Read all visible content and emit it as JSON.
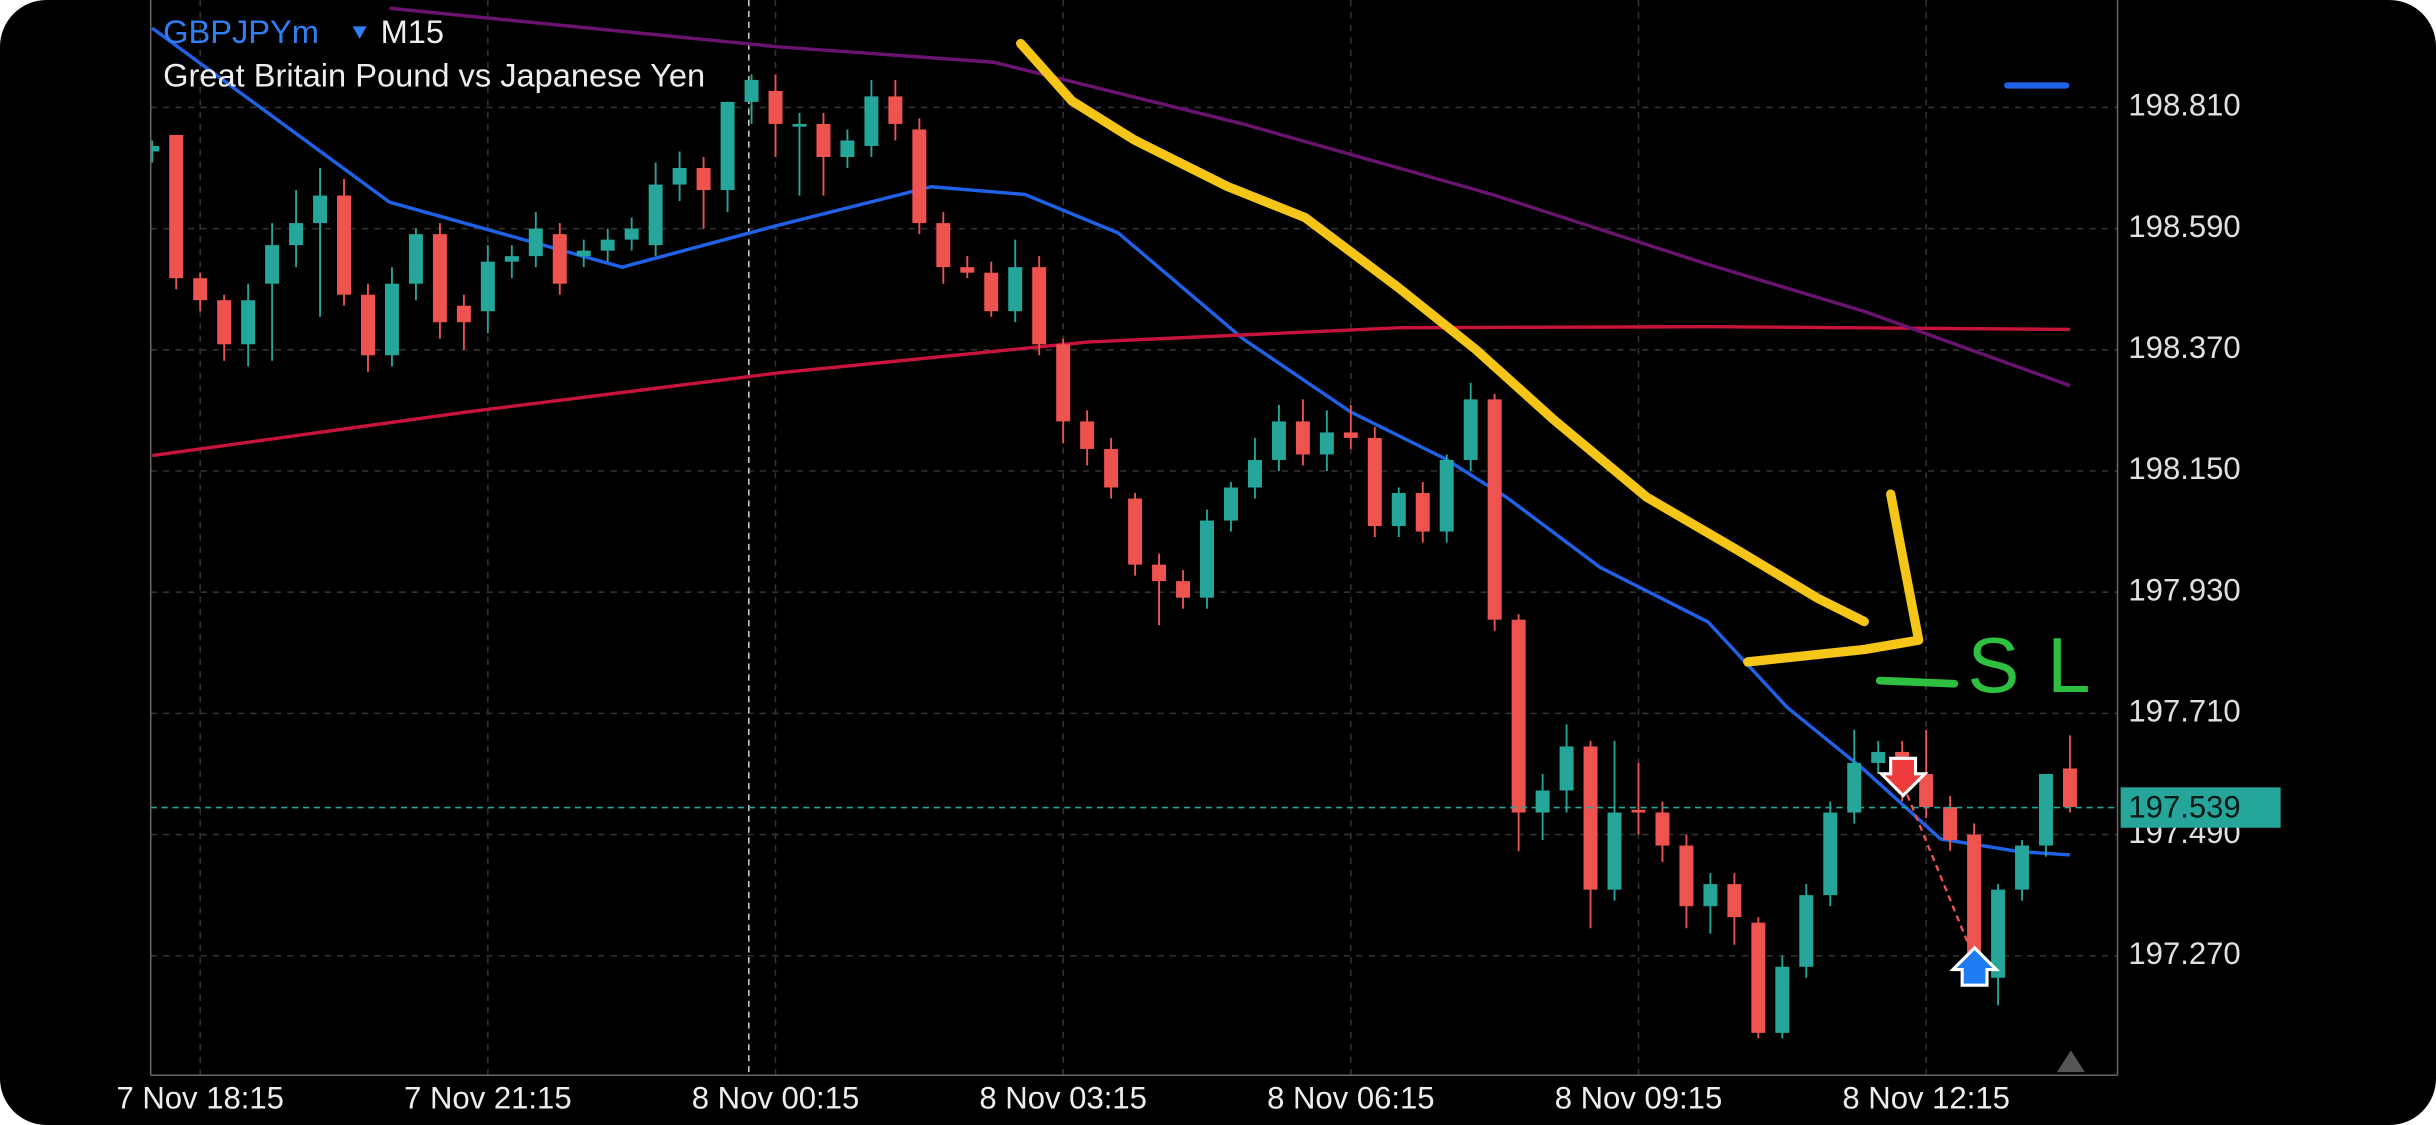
{
  "chart_data": {
    "type": "candlestick",
    "title": "GBPJPYm",
    "timeframe": "M15",
    "subtitle": "Great Britain Pound vs Japanese Yen",
    "up_color": "#26a69a",
    "down_color": "#ef5350",
    "grid": true,
    "ylim": [
      197.053,
      199.005
    ],
    "yticks": [
      {
        "value": 198.81,
        "label": "198.810"
      },
      {
        "value": 198.59,
        "label": "198.590"
      },
      {
        "value": 198.37,
        "label": "198.370"
      },
      {
        "value": 198.15,
        "label": "198.150"
      },
      {
        "value": 197.93,
        "label": "197.930"
      },
      {
        "value": 197.71,
        "label": "197.710"
      },
      {
        "value": 197.49,
        "label": "197.490"
      },
      {
        "value": 197.27,
        "label": "197.270"
      }
    ],
    "current_price": 197.539,
    "current_price_color": "#26a69a",
    "annotation": "SL",
    "categories": [
      null,
      null,
      "7 Nov 18:15",
      null,
      null,
      null,
      null,
      null,
      null,
      null,
      null,
      null,
      null,
      null,
      "7 Nov 21:15",
      null,
      null,
      null,
      null,
      null,
      null,
      null,
      null,
      null,
      null,
      null,
      "8 Nov 00:15",
      null,
      null,
      null,
      null,
      null,
      null,
      null,
      null,
      null,
      null,
      null,
      "8 Nov 03:15",
      null,
      null,
      null,
      null,
      null,
      null,
      null,
      null,
      null,
      null,
      null,
      "8 Nov 06:15",
      null,
      null,
      null,
      null,
      null,
      null,
      null,
      null,
      null,
      null,
      null,
      "8 Nov 09:15",
      null,
      null,
      null,
      null,
      null,
      null,
      null,
      null,
      null,
      null,
      null,
      "8 Nov 12:15",
      null,
      null,
      null,
      null,
      null,
      null
    ],
    "ohlc": [
      [
        198.73,
        198.75,
        198.71,
        198.74
      ],
      [
        198.76,
        198.76,
        198.48,
        198.5
      ],
      [
        198.5,
        198.51,
        198.44,
        198.46
      ],
      [
        198.46,
        198.47,
        198.35,
        198.38
      ],
      [
        198.38,
        198.49,
        198.34,
        198.46
      ],
      [
        198.49,
        198.6,
        198.35,
        198.56
      ],
      [
        198.56,
        198.66,
        198.52,
        198.6
      ],
      [
        198.6,
        198.7,
        198.43,
        198.65
      ],
      [
        198.65,
        198.68,
        198.45,
        198.47
      ],
      [
        198.47,
        198.49,
        198.33,
        198.36
      ],
      [
        198.36,
        198.52,
        198.34,
        198.49
      ],
      [
        198.49,
        198.59,
        198.46,
        198.58
      ],
      [
        198.58,
        198.6,
        198.39,
        198.42
      ],
      [
        198.45,
        198.47,
        198.37,
        198.42
      ],
      [
        198.44,
        198.56,
        198.4,
        198.53
      ],
      [
        198.53,
        198.56,
        198.5,
        198.54
      ],
      [
        198.54,
        198.62,
        198.52,
        198.59
      ],
      [
        198.58,
        198.6,
        198.47,
        198.49
      ],
      [
        198.54,
        198.57,
        198.52,
        198.55
      ],
      [
        198.55,
        198.59,
        198.53,
        198.57
      ],
      [
        198.57,
        198.61,
        198.55,
        198.59
      ],
      [
        198.56,
        198.71,
        198.54,
        198.67
      ],
      [
        198.67,
        198.73,
        198.64,
        198.7
      ],
      [
        198.7,
        198.72,
        198.59,
        198.66
      ],
      [
        198.66,
        198.82,
        198.62,
        198.82
      ],
      [
        198.82,
        198.87,
        198.78,
        198.86
      ],
      [
        198.84,
        198.87,
        198.72,
        198.78
      ],
      [
        198.775,
        198.8,
        198.65,
        198.78
      ],
      [
        198.78,
        198.8,
        198.65,
        198.72
      ],
      [
        198.72,
        198.77,
        198.7,
        198.75
      ],
      [
        198.74,
        198.86,
        198.72,
        198.83
      ],
      [
        198.83,
        198.86,
        198.75,
        198.78
      ],
      [
        198.77,
        198.79,
        198.58,
        198.6
      ],
      [
        198.6,
        198.62,
        198.49,
        198.52
      ],
      [
        198.52,
        198.54,
        198.5,
        198.51
      ],
      [
        198.51,
        198.53,
        198.43,
        198.44
      ],
      [
        198.44,
        198.57,
        198.42,
        198.52
      ],
      [
        198.52,
        198.54,
        198.36,
        198.38
      ],
      [
        198.38,
        198.39,
        198.2,
        198.24
      ],
      [
        198.24,
        198.26,
        198.16,
        198.19
      ],
      [
        198.19,
        198.21,
        198.1,
        198.12
      ],
      [
        198.1,
        198.11,
        197.96,
        197.98
      ],
      [
        197.98,
        198.0,
        197.87,
        197.95
      ],
      [
        197.95,
        197.97,
        197.9,
        197.92
      ],
      [
        197.92,
        198.08,
        197.9,
        198.06
      ],
      [
        198.06,
        198.13,
        198.04,
        198.12
      ],
      [
        198.12,
        198.21,
        198.1,
        198.17
      ],
      [
        198.17,
        198.27,
        198.15,
        198.24
      ],
      [
        198.24,
        198.28,
        198.16,
        198.18
      ],
      [
        198.18,
        198.26,
        198.15,
        198.22
      ],
      [
        198.22,
        198.27,
        198.19,
        198.21
      ],
      [
        198.21,
        198.23,
        198.03,
        198.05
      ],
      [
        198.05,
        198.12,
        198.03,
        198.11
      ],
      [
        198.11,
        198.13,
        198.02,
        198.04
      ],
      [
        198.04,
        198.18,
        198.02,
        198.17
      ],
      [
        198.17,
        198.31,
        198.15,
        198.28
      ],
      [
        198.28,
        198.29,
        197.86,
        197.88
      ],
      [
        197.88,
        197.89,
        197.46,
        197.53
      ],
      [
        197.53,
        197.6,
        197.48,
        197.57
      ],
      [
        197.57,
        197.69,
        197.53,
        197.65
      ],
      [
        197.65,
        197.66,
        197.32,
        197.39
      ],
      [
        197.39,
        197.66,
        197.37,
        197.53
      ],
      [
        197.535,
        197.62,
        197.49,
        197.53
      ],
      [
        197.53,
        197.55,
        197.44,
        197.47
      ],
      [
        197.47,
        197.49,
        197.32,
        197.36
      ],
      [
        197.36,
        197.42,
        197.31,
        197.4
      ],
      [
        197.4,
        197.42,
        197.29,
        197.34
      ],
      [
        197.33,
        197.34,
        197.12,
        197.13
      ],
      [
        197.13,
        197.27,
        197.12,
        197.25
      ],
      [
        197.25,
        197.4,
        197.23,
        197.38
      ],
      [
        197.38,
        197.55,
        197.36,
        197.53
      ],
      [
        197.53,
        197.68,
        197.51,
        197.62
      ],
      [
        197.62,
        197.66,
        197.6,
        197.64
      ],
      [
        197.64,
        197.66,
        197.55,
        197.57
      ],
      [
        197.6,
        197.68,
        197.52,
        197.54
      ],
      [
        197.54,
        197.56,
        197.46,
        197.48
      ],
      [
        197.49,
        197.51,
        197.24,
        197.26
      ],
      [
        197.23,
        197.4,
        197.18,
        197.39
      ],
      [
        197.39,
        197.48,
        197.37,
        197.47
      ],
      [
        197.47,
        197.6,
        197.45,
        197.6
      ],
      [
        197.61,
        197.67,
        197.53,
        197.54
      ]
    ],
    "lines": [
      {
        "color": "#1f62e8",
        "x": [
          0,
          9.9,
          19.6,
          26.1,
          32.5,
          36.4,
          40.3,
          45.5,
          50,
          53.9,
          56.5,
          60.4,
          64.9,
          68.2,
          71.4,
          74.6,
          77.9,
          80
        ],
        "values": [
          198.954,
          198.638,
          198.52,
          198.596,
          198.666,
          198.652,
          198.582,
          198.39,
          198.257,
          198.173,
          198.102,
          197.975,
          197.876,
          197.721,
          197.608,
          197.482,
          197.459,
          197.453
        ]
      },
      {
        "color": "#c8143c",
        "x": [
          0,
          13.1,
          26.1,
          39,
          52,
          65,
          80
        ],
        "values": [
          198.178,
          198.257,
          198.328,
          198.384,
          198.41,
          198.412,
          198.407
        ]
      },
      {
        "color": "#6a1470",
        "x": [
          9.9,
          26.1,
          35.1,
          45.5,
          55.9,
          64.9,
          71.4,
          80
        ],
        "values": [
          198.99,
          198.92,
          198.892,
          198.78,
          198.652,
          198.525,
          198.44,
          198.305
        ]
      }
    ]
  }
}
